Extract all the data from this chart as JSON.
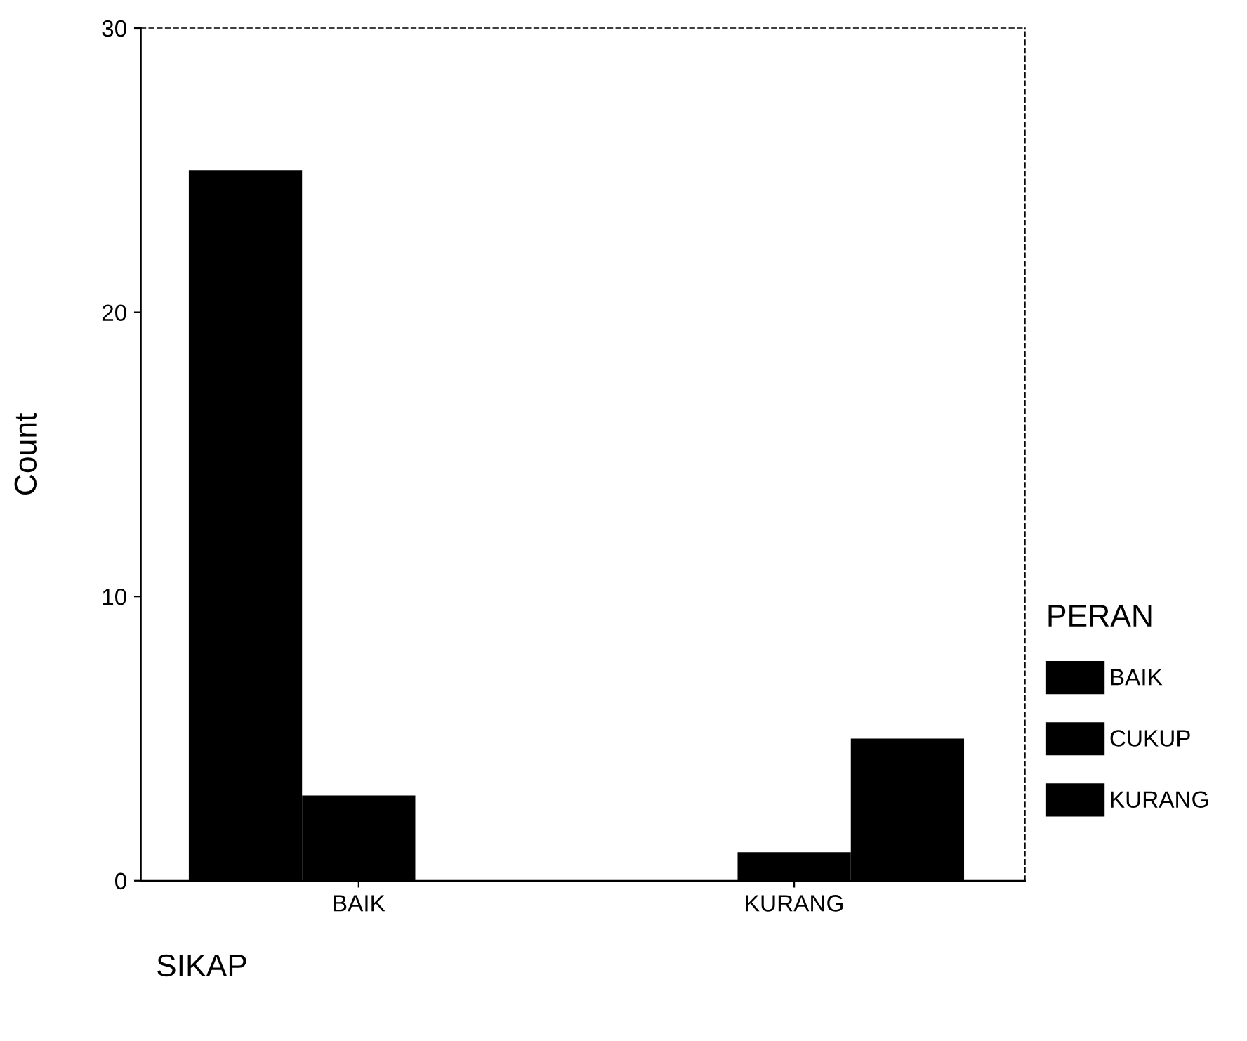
{
  "chart_data": {
    "type": "bar",
    "categories": [
      "BAIK",
      "KURANG"
    ],
    "series": [
      {
        "name": "BAIK",
        "color": "#000000",
        "values": [
          25,
          0
        ]
      },
      {
        "name": "CUKUP",
        "color": "#000000",
        "values": [
          3,
          1
        ]
      },
      {
        "name": "KURANG",
        "color": "#000000",
        "values": [
          0,
          5
        ]
      }
    ],
    "xlabel": "SIKAP",
    "ylabel": "Count",
    "legend_title": "PERAN",
    "legend": "right",
    "ylim": [
      0,
      30
    ],
    "yticks": [
      0,
      10,
      20,
      30
    ],
    "grid": false
  }
}
